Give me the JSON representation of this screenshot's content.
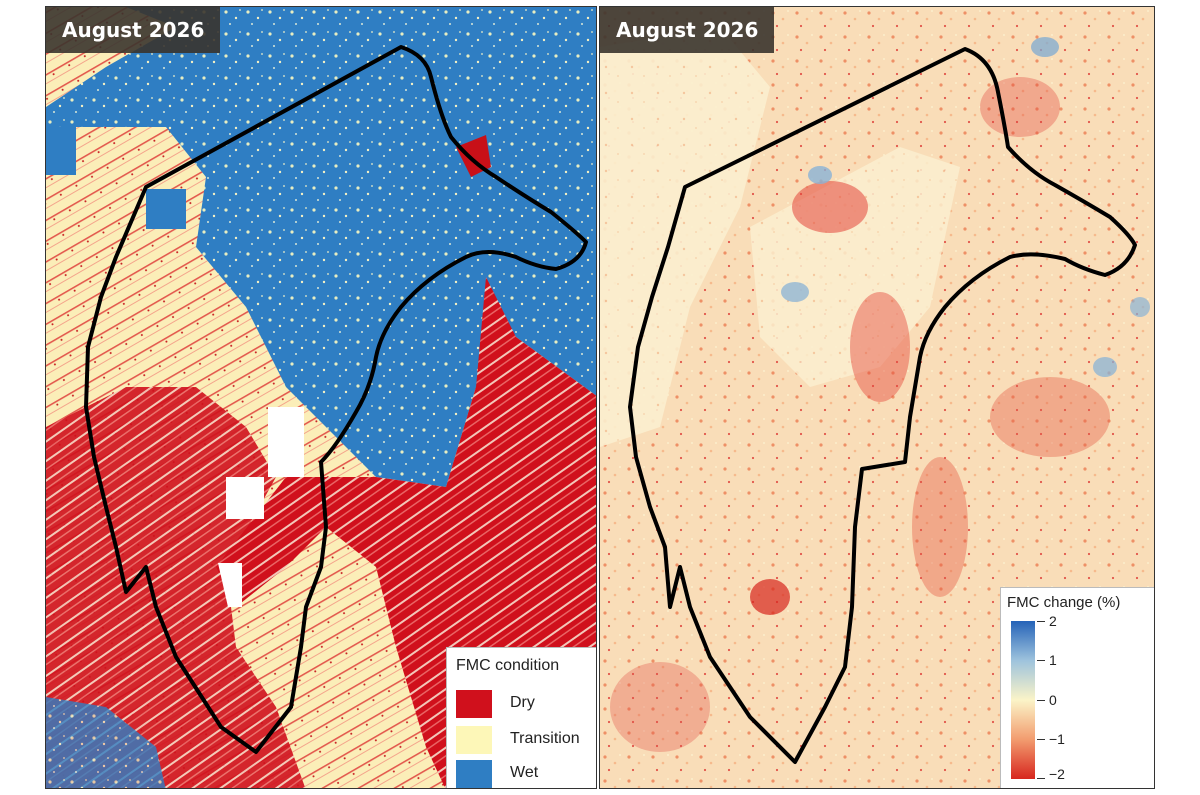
{
  "left_panel": {
    "title": "August 2026",
    "legend": {
      "title": "FMC condition",
      "items": [
        {
          "label": "Dry",
          "color": "#d0101c"
        },
        {
          "label": "Transition",
          "color": "#fdf7b8"
        },
        {
          "label": "Wet",
          "color": "#2f7ec3"
        }
      ]
    }
  },
  "right_panel": {
    "title": "August 2026",
    "legend": {
      "title": "FMC change (%)",
      "ticks": [
        "2",
        "1",
        "0",
        "−1",
        "−2"
      ],
      "colors": [
        "#2563b8",
        "#9ec3dd",
        "#fbf4c8",
        "#f29c6f",
        "#d7261e"
      ]
    }
  },
  "colors": {
    "boundary": "#000000",
    "dry": "#d0101c",
    "transition": "#fdf7b8",
    "wet": "#2f7ec3",
    "badge": "#3a342e"
  }
}
